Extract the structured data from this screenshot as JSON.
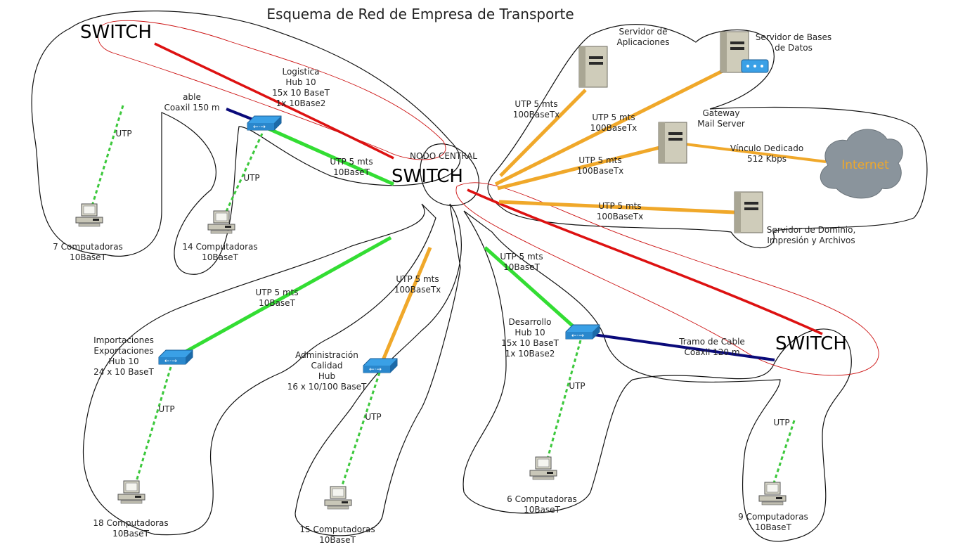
{
  "title": "Esquema de Red de Empresa de Transporte",
  "colors": {
    "utp_10": "#33dd33",
    "utp_100": "#f0a82a",
    "coax": "#0a0a7a",
    "dashed_utp": "#3cc83c",
    "annotation_red": "#dd1111",
    "outline": "#111111",
    "server": "#c9c6b4",
    "hub": "#2a8fd8",
    "cloud": "#8a949c",
    "internet_text": "#f0a82a"
  },
  "switch_labels": {
    "top_left": "SWITCH",
    "center": "SWITCH",
    "right": "SWITCH"
  },
  "nodo_central": "NODO CENTRAL",
  "servers": {
    "aplicaciones": [
      "Servidor de",
      "Aplicaciones"
    ],
    "bases_datos": [
      "Servidor de Bases",
      "de Datos"
    ],
    "gateway": [
      "Gateway",
      "Mail Server"
    ],
    "dominio": [
      "Servidor de Dominio,",
      "Impresión y Archivos"
    ]
  },
  "internet": {
    "label": "Internet",
    "link": [
      "Vínculo Dedicado",
      "512 Kbps"
    ]
  },
  "links": {
    "aplicaciones": [
      "UTP 5 mts",
      "100BaseTx"
    ],
    "bases_datos": [
      "UTP 5 mts",
      "100BaseTx"
    ],
    "gateway": [
      "UTP 5 mts",
      "100BaseTx"
    ],
    "dominio": [
      "UTP 5 mts",
      "100BaseTx"
    ],
    "logistica": [
      "UTP 5 mts",
      "10BaseT"
    ],
    "importaciones": [
      "UTP 5 mts",
      "10BaseT"
    ],
    "administracion": [
      "UTP 5 mts",
      "100BaseTx"
    ],
    "desarrollo": [
      "UTP 5 mts",
      "10BaseT"
    ]
  },
  "hubs": {
    "logistica": [
      "Logistica",
      "Hub 10",
      "15x 10 BaseT",
      "1x 10Base2"
    ],
    "importaciones": [
      "Importaciones",
      "Exportaciones",
      "Hub 10",
      "24 x 10 BaseT"
    ],
    "administracion": [
      "Administración",
      "Calidad",
      "Hub",
      "16 x 10/100 BaseT"
    ],
    "desarrollo": [
      "Desarrollo",
      "Hub 10",
      "15x 10 BaseT",
      "1x 10Base2"
    ]
  },
  "coax": {
    "logistica": [
      "able",
      "Coaxil 150 m"
    ],
    "desarrollo": [
      "Tramo de Cable",
      "Coaxil 120 m"
    ]
  },
  "utp_label": "UTP",
  "utp_partial": "UTP",
  "computers": {
    "c7": [
      "7 Computadoras",
      "10BaseT"
    ],
    "c14": [
      "14 Computadoras",
      "10BaseT"
    ],
    "c18": [
      "18 Computadoras",
      "10BaseT"
    ],
    "c15": [
      "15 Computadoras",
      "10BaseT"
    ],
    "c6": [
      "6 Computadoras",
      "10BaseT"
    ],
    "c9": [
      "9 Computadoras",
      "10BaseT"
    ]
  }
}
